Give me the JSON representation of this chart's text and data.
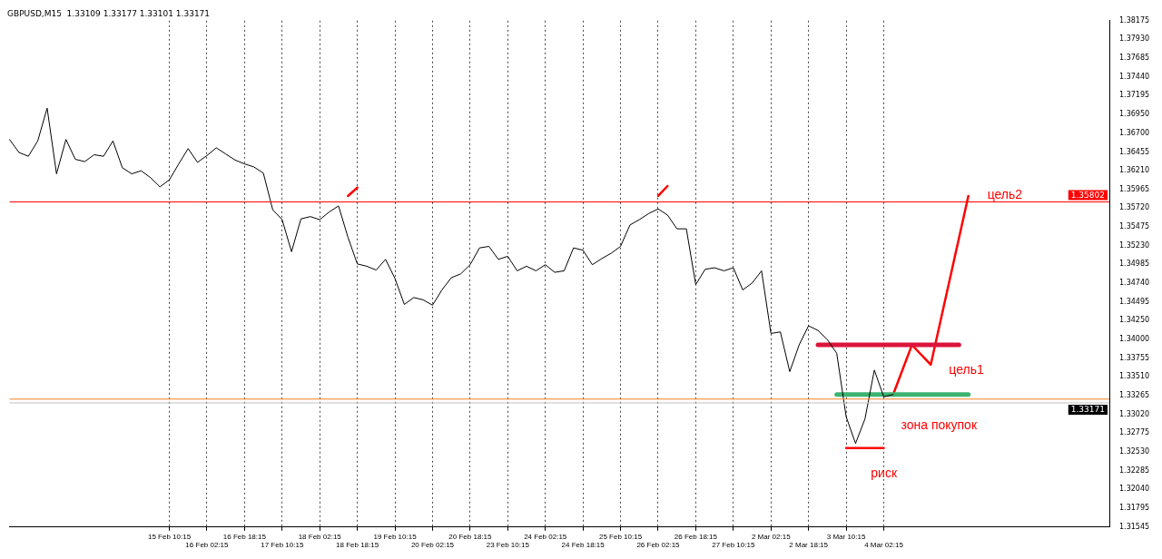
{
  "chart_data": {
    "type": "line",
    "title": "GBPUSD,M15  1.33109 1.33177 1.33101 1.33171",
    "categories": [
      null,
      null,
      null,
      null,
      null,
      null,
      null,
      null,
      null,
      null,
      null,
      null,
      null,
      null,
      null,
      null,
      null,
      "15 Feb 10:15",
      null,
      null,
      null,
      "16 Feb 02:15",
      null,
      null,
      null,
      "16 Feb 18:15",
      null,
      null,
      null,
      "17 Feb 10:15",
      null,
      null,
      null,
      "18 Feb 02:15",
      null,
      null,
      null,
      "18 Feb 18:15",
      null,
      null,
      null,
      "19 Feb 10:15",
      null,
      null,
      null,
      "20 Feb 02:15",
      null,
      null,
      null,
      "20 Feb 18:15",
      null,
      null,
      null,
      "23 Feb 10:15",
      null,
      null,
      null,
      "24 Feb 02:15",
      null,
      null,
      null,
      "24 Feb 18:15",
      null,
      null,
      null,
      "25 Feb 10:15",
      null,
      null,
      null,
      "26 Feb 02:15",
      null,
      null,
      null,
      "26 Feb 18:15",
      null,
      null,
      null,
      "27 Feb 10:15",
      null,
      null,
      null,
      "2 Mar 02:15",
      null,
      null,
      null,
      "2 Mar 18:15",
      null,
      null,
      null,
      "3 Mar 10:15",
      null,
      null,
      null,
      "4 Mar 02:15",
      null,
      null,
      null,
      null,
      null,
      null,
      null,
      null,
      null,
      null,
      null,
      null,
      null,
      null,
      null,
      null,
      null,
      null,
      null,
      null,
      null,
      null,
      null,
      null
    ],
    "ylim": [
      1.31545,
      1.38175
    ],
    "yticks": [
      {
        "value": 1.38175,
        "label": "1.38175"
      },
      {
        "value": 1.3793,
        "label": "1.37930"
      },
      {
        "value": 1.37685,
        "label": "1.37685"
      },
      {
        "value": 1.3744,
        "label": "1.37440"
      },
      {
        "value": 1.37195,
        "label": "1.37195"
      },
      {
        "value": 1.3695,
        "label": "1.36950"
      },
      {
        "value": 1.367,
        "label": "1.36700"
      },
      {
        "value": 1.36455,
        "label": "1.36455"
      },
      {
        "value": 1.3621,
        "label": "1.36210"
      },
      {
        "value": 1.35965,
        "label": "1.35965"
      },
      {
        "value": 1.3572,
        "label": "1.35720"
      },
      {
        "value": 1.35475,
        "label": "1.35475"
      },
      {
        "value": 1.3523,
        "label": "1.35230"
      },
      {
        "value": 1.34985,
        "label": "1.34985"
      },
      {
        "value": 1.3474,
        "label": "1.34740"
      },
      {
        "value": 1.34495,
        "label": "1.34495"
      },
      {
        "value": 1.3425,
        "label": "1.34250"
      },
      {
        "value": 1.34,
        "label": "1.34000"
      },
      {
        "value": 1.33755,
        "label": "1.33755"
      },
      {
        "value": 1.3351,
        "label": "1.33510"
      },
      {
        "value": 1.33265,
        "label": "1.33265"
      },
      {
        "value": 1.3302,
        "label": "1.33020"
      },
      {
        "value": 1.32775,
        "label": "1.32775"
      },
      {
        "value": 1.3253,
        "label": "1.32530"
      },
      {
        "value": 1.32285,
        "label": "1.32285"
      },
      {
        "value": 1.3204,
        "label": "1.32040"
      },
      {
        "value": 1.31795,
        "label": "1.31795"
      },
      {
        "value": 1.31545,
        "label": "1.31545"
      }
    ],
    "grid": "x",
    "legend": false,
    "series": [
      {
        "color": "#000000",
        "values": [
          1.3662,
          1.3645,
          1.364,
          1.366,
          1.3703,
          1.3617,
          1.3662,
          1.3636,
          1.3633,
          1.3642,
          1.364,
          1.366,
          1.3625,
          1.3617,
          1.3621,
          1.3612,
          1.36,
          1.3609,
          1.363,
          1.365,
          1.3632,
          1.3641,
          1.3651,
          1.3643,
          1.3635,
          1.363,
          1.3626,
          1.3618,
          1.357,
          1.3557,
          1.3515,
          1.3558,
          1.3561,
          1.3557,
          1.3567,
          1.3575,
          1.3534,
          1.3499,
          1.3496,
          1.3491,
          1.3505,
          1.348,
          1.3446,
          1.3455,
          1.3452,
          1.3445,
          1.3465,
          1.3481,
          1.3486,
          1.3498,
          1.352,
          1.3522,
          1.3505,
          1.3509,
          1.349,
          1.3496,
          1.349,
          1.3498,
          1.3488,
          1.349,
          1.352,
          1.3517,
          1.3498,
          1.3506,
          1.3513,
          1.3522,
          1.355,
          1.3557,
          1.3565,
          1.3571,
          1.3563,
          1.3545,
          1.3545,
          1.3472,
          1.3492,
          1.3494,
          1.349,
          1.3494,
          1.3465,
          1.3474,
          1.349,
          1.3408,
          1.341,
          1.3358,
          1.3393,
          1.3418,
          1.3412,
          1.34,
          1.3382,
          1.3299,
          1.3264,
          1.3296,
          1.336,
          1.3325,
          1.3328,
          null,
          null,
          null,
          null,
          null,
          null,
          null,
          null,
          null,
          null,
          null,
          null,
          null,
          null,
          null,
          null,
          null,
          null,
          null,
          null,
          null,
          null,
          null
        ]
      },
      {
        "color": "#dc143c",
        "values": [
          null,
          null,
          null,
          null,
          null,
          null,
          null,
          null,
          null,
          null,
          null,
          null,
          null,
          null,
          null,
          null,
          null,
          null,
          null,
          null,
          null,
          null,
          null,
          null,
          null,
          null,
          null,
          null,
          null,
          null,
          null,
          null,
          null,
          null,
          null,
          null,
          null,
          null,
          null,
          null,
          null,
          null,
          null,
          null,
          null,
          null,
          null,
          null,
          null,
          null,
          null,
          null,
          null,
          null,
          null,
          null,
          null,
          null,
          null,
          null,
          null,
          null,
          null,
          null,
          null,
          null,
          null,
          null,
          null,
          null,
          null,
          null,
          null,
          null,
          null,
          null,
          null,
          null,
          null,
          null,
          null,
          null,
          null,
          null,
          null,
          null,
          1.3393,
          null,
          null,
          null,
          null,
          null,
          null,
          null,
          null,
          null,
          null,
          null,
          null,
          null,
          null,
          1.3393,
          null,
          null,
          null,
          null,
          null,
          null,
          null,
          null,
          null,
          null,
          null,
          null,
          null,
          null,
          null,
          null
        ]
      },
      {
        "color": "#3cb371",
        "values": [
          null,
          null,
          null,
          null,
          null,
          null,
          null,
          null,
          null,
          null,
          null,
          null,
          null,
          null,
          null,
          null,
          null,
          null,
          null,
          null,
          null,
          null,
          null,
          null,
          null,
          null,
          null,
          null,
          null,
          null,
          null,
          null,
          null,
          null,
          null,
          null,
          null,
          null,
          null,
          null,
          null,
          null,
          null,
          null,
          null,
          null,
          null,
          null,
          null,
          null,
          null,
          null,
          null,
          null,
          null,
          null,
          null,
          null,
          null,
          null,
          null,
          null,
          null,
          null,
          null,
          null,
          null,
          null,
          null,
          null,
          null,
          null,
          null,
          null,
          null,
          null,
          null,
          null,
          null,
          null,
          null,
          null,
          null,
          null,
          null,
          null,
          null,
          null,
          1.3328,
          null,
          null,
          null,
          null,
          null,
          null,
          null,
          null,
          null,
          null,
          null,
          null,
          null,
          1.3328,
          null,
          null,
          null,
          null,
          null,
          null,
          null,
          null,
          null,
          null,
          null,
          null,
          null,
          null,
          null
        ]
      },
      {
        "color": "#ff0000",
        "values": [
          null,
          null,
          null,
          null,
          null,
          null,
          null,
          null,
          null,
          null,
          null,
          null,
          null,
          null,
          null,
          null,
          null,
          null,
          null,
          null,
          null,
          null,
          null,
          null,
          null,
          null,
          null,
          null,
          null,
          null,
          null,
          null,
          null,
          null,
          null,
          null,
          null,
          null,
          null,
          null,
          null,
          null,
          null,
          null,
          null,
          null,
          null,
          null,
          null,
          null,
          null,
          null,
          null,
          null,
          null,
          null,
          null,
          null,
          null,
          null,
          null,
          null,
          null,
          null,
          null,
          null,
          null,
          null,
          null,
          null,
          null,
          null,
          null,
          null,
          null,
          null,
          null,
          null,
          null,
          null,
          null,
          null,
          null,
          null,
          null,
          null,
          null,
          null,
          null,
          null,
          null,
          null,
          null,
          null,
          1.3328,
          null,
          1.3393,
          null,
          1.3367,
          null,
          null,
          null,
          1.3588,
          null,
          null,
          null,
          null,
          null,
          null,
          null,
          null,
          null,
          null,
          null,
          null,
          null,
          null,
          null
        ]
      },
      {
        "color": "#ff0000",
        "values": [
          null,
          null,
          null,
          null,
          null,
          null,
          null,
          null,
          null,
          null,
          null,
          null,
          null,
          null,
          null,
          null,
          null,
          null,
          null,
          null,
          null,
          null,
          null,
          null,
          null,
          null,
          null,
          null,
          null,
          null,
          null,
          null,
          null,
          null,
          null,
          null,
          null,
          null,
          null,
          null,
          null,
          null,
          null,
          null,
          null,
          null,
          null,
          null,
          null,
          null,
          null,
          null,
          null,
          null,
          null,
          null,
          null,
          null,
          null,
          null,
          null,
          null,
          null,
          null,
          null,
          null,
          null,
          null,
          null,
          null,
          null,
          null,
          null,
          null,
          null,
          null,
          null,
          null,
          null,
          null,
          null,
          null,
          null,
          null,
          null,
          null,
          null,
          null,
          null,
          1.3258,
          null,
          null,
          null,
          1.3258,
          null,
          null,
          null,
          null,
          null,
          null,
          null,
          null,
          null,
          null,
          null,
          null,
          null,
          null,
          null,
          null,
          null,
          null,
          null,
          null,
          null,
          null,
          null,
          null
        ]
      },
      {
        "color": "#ff0000",
        "values": [
          null,
          null,
          null,
          null,
          null,
          null,
          null,
          null,
          null,
          null,
          null,
          null,
          null,
          null,
          null,
          null,
          null,
          null,
          null,
          null,
          null,
          null,
          null,
          null,
          null,
          null,
          null,
          null,
          null,
          null,
          null,
          null,
          null,
          null,
          null,
          null,
          1.3588,
          1.3599,
          null,
          null,
          null,
          null,
          null,
          null,
          null,
          null,
          null,
          null,
          null,
          null,
          null,
          null,
          null,
          null,
          null,
          null,
          null,
          null,
          null,
          null,
          null,
          null,
          null,
          null,
          null,
          null,
          null,
          null,
          null,
          null,
          null,
          null,
          null,
          null,
          null,
          null,
          null,
          null,
          null,
          null,
          null,
          null,
          null,
          null,
          null,
          null,
          null,
          null,
          null,
          null,
          null,
          null,
          null,
          null,
          null,
          null,
          null,
          null,
          null,
          null,
          null,
          null,
          null,
          null,
          null,
          null,
          null,
          null,
          null,
          null,
          null,
          null,
          null,
          null,
          null,
          null,
          null,
          null
        ]
      },
      {
        "color": "#ff0000",
        "values": [
          null,
          null,
          null,
          null,
          null,
          null,
          null,
          null,
          null,
          null,
          null,
          null,
          null,
          null,
          null,
          null,
          null,
          null,
          null,
          null,
          null,
          null,
          null,
          null,
          null,
          null,
          null,
          null,
          null,
          null,
          null,
          null,
          null,
          null,
          null,
          null,
          null,
          null,
          null,
          null,
          null,
          null,
          null,
          null,
          null,
          null,
          null,
          null,
          null,
          null,
          null,
          null,
          null,
          null,
          null,
          null,
          null,
          null,
          null,
          null,
          null,
          null,
          null,
          null,
          null,
          null,
          null,
          null,
          null,
          1.3588,
          1.3601,
          null,
          null,
          null,
          null,
          null,
          null,
          null,
          null,
          null,
          null,
          null,
          null,
          null,
          null,
          null,
          null,
          null,
          null,
          null,
          null,
          null,
          null,
          null,
          null,
          null,
          null,
          null,
          null,
          null,
          null,
          null,
          null,
          null,
          null,
          null,
          null,
          null,
          null,
          null,
          null,
          null,
          null,
          null,
          null,
          null,
          null,
          null
        ]
      }
    ],
    "ref_lines": [
      {
        "axis": "y",
        "value": 1.35802,
        "label": "1.35802",
        "color": "#ff0000"
      },
      {
        "axis": "y",
        "value": 1.3322,
        "color": "#ff7f27"
      },
      {
        "axis": "y",
        "value": 1.33171,
        "label": "1.33171",
        "color": "#c0c0c0"
      }
    ],
    "annotations": [
      "цель2",
      "цель1",
      "зона покупок",
      "риск"
    ]
  }
}
